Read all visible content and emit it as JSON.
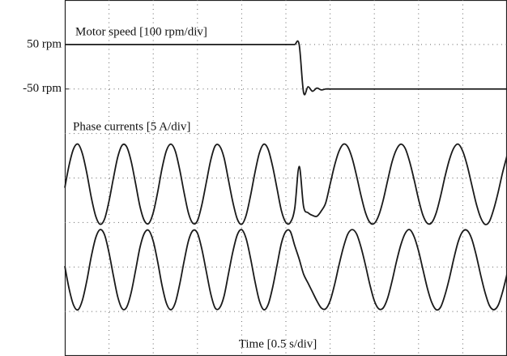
{
  "chart_data": [
    {
      "type": "line",
      "title": "Motor speed [100 rpm/div]",
      "xlabel": "Time [0.5 s/div]",
      "x": [
        0,
        0.05,
        0.1,
        0.15,
        0.2,
        0.25,
        0.3,
        0.35,
        0.4,
        0.45,
        0.5,
        0.55,
        0.6,
        0.65,
        0.7,
        0.75,
        0.8,
        0.85,
        0.9,
        0.95,
        1,
        1.05,
        1.1,
        1.15,
        1.2,
        1.25,
        1.3,
        1.35,
        1.4,
        1.45,
        1.5,
        1.55,
        1.6,
        1.65,
        1.7,
        1.75,
        1.8,
        1.85,
        1.9,
        1.95,
        2,
        2.05,
        2.1,
        2.15,
        2.2,
        2.25,
        2.3,
        2.35,
        2.4,
        2.45,
        2.5,
        2.55,
        2.6,
        2.65,
        2.7,
        2.75,
        2.8,
        2.85,
        2.9,
        2.95,
        3,
        3.05,
        3.1,
        3.15,
        3.2,
        3.25,
        3.3,
        3.35,
        3.4,
        3.45,
        3.5,
        3.55,
        3.6,
        3.65,
        3.7,
        3.75,
        3.8,
        3.85,
        3.9,
        3.95,
        4,
        4.05,
        4.1,
        4.15,
        4.2,
        4.25,
        4.3,
        4.35,
        4.4,
        4.45,
        4.5,
        4.55,
        4.6,
        4.65,
        4.7,
        4.75,
        4.8,
        4.85,
        4.9,
        4.95,
        5
      ],
      "values": [
        50,
        50,
        50,
        50,
        50,
        50,
        50,
        50,
        50,
        50,
        50,
        50,
        50,
        50,
        50,
        50,
        50,
        50,
        50,
        50,
        50,
        50,
        50,
        50,
        50,
        50,
        50,
        50,
        50,
        50,
        50,
        50,
        50,
        50,
        50,
        50,
        50,
        50,
        50,
        50,
        50,
        50,
        50,
        50,
        50,
        50,
        50,
        50,
        50,
        50,
        50,
        50,
        50,
        50,
        -58,
        -45,
        -55,
        -48,
        -52,
        -50,
        -50,
        -50,
        -50,
        -50,
        -50,
        -50,
        -50,
        -50,
        -50,
        -50,
        -50,
        -50,
        -50,
        -50,
        -50,
        -50,
        -50,
        -50,
        -50,
        -50,
        -50,
        -50,
        -50,
        -50,
        -50,
        -50,
        -50,
        -50,
        -50,
        -50,
        -50,
        -50,
        -50,
        -50,
        -50,
        -50,
        -50,
        -50,
        -50,
        -50,
        -50
      ],
      "color": "#1a1a1a",
      "xlim": [
        0,
        5
      ],
      "ylim": [
        -650,
        150
      ],
      "yticks": [
        {
          "value": 50,
          "label": "50 rpm"
        },
        {
          "value": -50,
          "label": "-50 rpm"
        }
      ],
      "grid": true
    },
    {
      "type": "line",
      "title": "Phase currents [5 A/div]",
      "x": [
        0,
        0.05,
        0.1,
        0.15,
        0.2,
        0.25,
        0.3,
        0.35,
        0.4,
        0.45,
        0.5,
        0.55,
        0.6,
        0.65,
        0.7,
        0.75,
        0.8,
        0.85,
        0.9,
        0.95,
        1,
        1.05,
        1.1,
        1.15,
        1.2,
        1.25,
        1.3,
        1.35,
        1.4,
        1.45,
        1.5,
        1.55,
        1.6,
        1.65,
        1.7,
        1.75,
        1.8,
        1.85,
        1.9,
        1.95,
        2,
        2.05,
        2.1,
        2.15,
        2.2,
        2.25,
        2.3,
        2.35,
        2.4,
        2.45,
        2.5,
        2.55,
        2.6,
        2.65,
        2.7,
        2.75,
        2.8,
        2.85,
        2.9,
        2.95,
        3,
        3.05,
        3.1,
        3.15,
        3.2,
        3.25,
        3.3,
        3.35,
        3.4,
        3.45,
        3.5,
        3.55,
        3.6,
        3.65,
        3.7,
        3.75,
        3.8,
        3.85,
        3.9,
        3.95,
        4,
        4.05,
        4.1,
        4.15,
        4.2,
        4.25,
        4.3,
        4.35,
        4.4,
        4.45,
        4.5,
        4.55,
        4.6,
        4.65,
        4.7,
        4.75,
        4.8,
        4.85,
        4.9,
        4.95,
        5
      ],
      "values": [
        -0.4,
        2.2,
        4.0,
        4.5,
        3.4,
        1.2,
        -1.5,
        -3.6,
        -4.5,
        -3.9,
        -1.9,
        0.7,
        3.1,
        4.4,
        4.2,
        2.6,
        0.1,
        -2.5,
        -4.1,
        -4.4,
        -3.2,
        -0.9,
        1.8,
        3.8,
        4.5,
        3.7,
        1.6,
        -1.0,
        -3.3,
        -4.4,
        -4.1,
        -2.3,
        0.2,
        2.7,
        4.3,
        4.3,
        3.0,
        0.5,
        -2.0,
        -3.9,
        -4.5,
        -3.5,
        -1.3,
        1.3,
        3.5,
        4.5,
        3.9,
        2.0,
        -0.5,
        -3.0,
        -4.3,
        -4.3,
        -2.7,
        2.0,
        -2.5,
        -3.2,
        -3.5,
        -3.6,
        -3.0,
        -2.1,
        0,
        2.1,
        3.7,
        4.5,
        4.2,
        2.9,
        0.9,
        -1.3,
        -3.2,
        -4.3,
        -4.4,
        -3.5,
        -1.8,
        0.4,
        2.5,
        3.9,
        4.5,
        4.0,
        2.5,
        0.5,
        -1.7,
        -3.5,
        -4.4,
        -4.3,
        -3.2,
        -1.3,
        0.9,
        2.8,
        4.1,
        4.5,
        3.7,
        2.1,
        0,
        -2.1,
        -3.7,
        -4.5,
        -4.2,
        -2.8,
        -0.9,
        1.3,
        3.2
      ],
      "color": "#1a1a1a",
      "xlim": [
        0,
        5
      ],
      "ylim": [
        -19.3,
        20.7
      ]
    },
    {
      "type": "line",
      "x": [
        0,
        0.05,
        0.1,
        0.15,
        0.2,
        0.25,
        0.3,
        0.35,
        0.4,
        0.45,
        0.5,
        0.55,
        0.6,
        0.65,
        0.7,
        0.75,
        0.8,
        0.85,
        0.9,
        0.95,
        1,
        1.05,
        1.1,
        1.15,
        1.2,
        1.25,
        1.3,
        1.35,
        1.4,
        1.45,
        1.5,
        1.55,
        1.6,
        1.65,
        1.7,
        1.75,
        1.8,
        1.85,
        1.9,
        1.95,
        2,
        2.05,
        2.1,
        2.15,
        2.2,
        2.25,
        2.3,
        2.35,
        2.4,
        2.45,
        2.5,
        2.55,
        2.6,
        2.65,
        2.7,
        2.75,
        2.8,
        2.85,
        2.9,
        2.95,
        3,
        3.05,
        3.1,
        3.15,
        3.2,
        3.25,
        3.3,
        3.35,
        3.4,
        3.45,
        3.5,
        3.55,
        3.6,
        3.65,
        3.7,
        3.75,
        3.8,
        3.85,
        3.9,
        3.95,
        4,
        4.05,
        4.1,
        4.15,
        4.2,
        4.25,
        4.3,
        4.35,
        4.4,
        4.45,
        4.5,
        4.55,
        4.6,
        4.65,
        4.7,
        4.75,
        4.8,
        4.85,
        4.9,
        4.95,
        5
      ],
      "values": [
        0.4,
        -2.2,
        -4.0,
        -4.5,
        -3.4,
        -1.2,
        1.5,
        3.6,
        4.5,
        3.9,
        1.9,
        -0.7,
        -3.1,
        -4.4,
        -4.2,
        -2.6,
        -0.1,
        2.5,
        4.1,
        4.4,
        3.2,
        0.9,
        -1.8,
        -3.8,
        -4.5,
        -3.7,
        -1.6,
        1.0,
        3.3,
        4.4,
        4.1,
        2.3,
        -0.2,
        -2.7,
        -4.3,
        -4.3,
        -3.0,
        -0.5,
        2.0,
        3.9,
        4.5,
        3.5,
        1.3,
        -1.3,
        -3.5,
        -4.5,
        -3.9,
        -2.0,
        0.5,
        3.0,
        4.3,
        4.3,
        2.7,
        1.2,
        -0.5,
        -1.5,
        -2.5,
        -3.5,
        -4.3,
        -4.4,
        -3.5,
        -1.7,
        0.5,
        2.5,
        4.0,
        4.5,
        4.0,
        2.5,
        0.5,
        -1.7,
        -3.5,
        -4.4,
        -4.3,
        -3.2,
        -1.3,
        0.9,
        2.8,
        4.1,
        4.5,
        3.7,
        2.1,
        0,
        -2.1,
        -3.7,
        -4.5,
        -4.2,
        -2.8,
        -0.9,
        1.3,
        3.2,
        4.3,
        4.4,
        3.5,
        1.7,
        -0.5,
        -2.5,
        -4.0,
        -4.5,
        -4.0,
        -2.5,
        -0.5
      ],
      "color": "#1a1a1a",
      "xlim": [
        0,
        5
      ],
      "ylim": [
        -9.7,
        30.3
      ]
    }
  ]
}
